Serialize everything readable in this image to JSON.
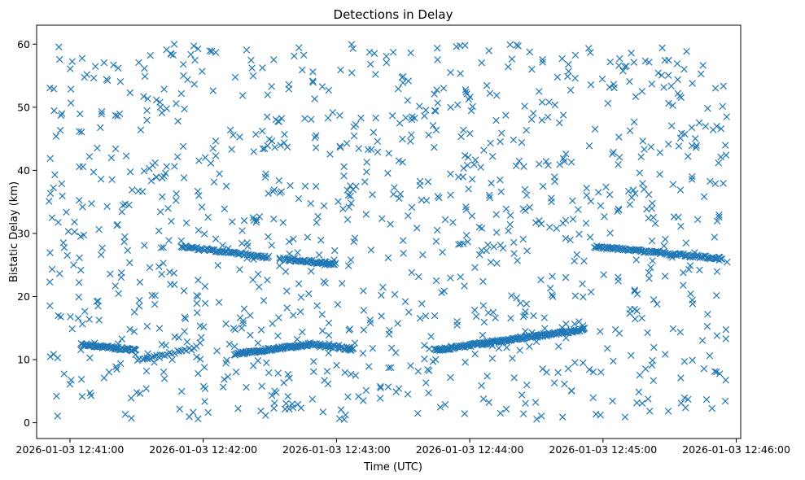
{
  "chart_data": {
    "type": "scatter",
    "title": "Detections in Delay",
    "xlabel": "Time (UTC)",
    "ylabel": "Bistatic Delay (km)",
    "marker": "x",
    "color": "#1f77b4",
    "x_type": "datetime",
    "xlim": [
      "2026-01-03 12:40:45",
      "2026-01-03 12:46:02"
    ],
    "ylim": [
      -2.5,
      63
    ],
    "x_ticks": [
      "2026-01-03 12:41:00",
      "2026-01-03 12:42:00",
      "2026-01-03 12:43:00",
      "2026-01-03 12:44:00",
      "2026-01-03 12:45:00",
      "2026-01-03 12:46:00"
    ],
    "y_ticks": [
      0,
      10,
      20,
      30,
      40,
      50,
      60
    ],
    "grid": false,
    "clutter": {
      "time_range": [
        "2026-01-03 12:40:50",
        "2026-01-03 12:45:56"
      ],
      "delay_range": [
        0.5,
        60
      ],
      "count": 1100
    },
    "tracks": [
      {
        "start": {
          "time": "2026-01-03 12:41:05",
          "delay": 12.4
        },
        "end": {
          "time": "2026-01-03 12:41:30",
          "delay": 11.5
        },
        "count": 60
      },
      {
        "start": {
          "time": "2026-01-03 12:41:30",
          "delay": 9.8
        },
        "end": {
          "time": "2026-01-03 12:41:58",
          "delay": 12.0
        },
        "count": 25
      },
      {
        "start": {
          "time": "2026-01-03 12:42:14",
          "delay": 10.9
        },
        "end": {
          "time": "2026-01-03 12:42:48",
          "delay": 12.4
        },
        "count": 90
      },
      {
        "start": {
          "time": "2026-01-03 12:42:48",
          "delay": 12.6
        },
        "end": {
          "time": "2026-01-03 12:43:08",
          "delay": 11.6
        },
        "count": 40
      },
      {
        "start": {
          "time": "2026-01-03 12:41:50",
          "delay": 27.9
        },
        "end": {
          "time": "2026-01-03 12:42:30",
          "delay": 26.2
        },
        "count": 70
      },
      {
        "start": {
          "time": "2026-01-03 12:42:36",
          "delay": 25.9
        },
        "end": {
          "time": "2026-01-03 12:43:00",
          "delay": 25.2
        },
        "count": 50
      },
      {
        "start": {
          "time": "2026-01-03 12:43:44",
          "delay": 11.5
        },
        "end": {
          "time": "2026-01-03 12:44:52",
          "delay": 14.8
        },
        "count": 170
      },
      {
        "start": {
          "time": "2026-01-03 12:44:56",
          "delay": 27.9
        },
        "end": {
          "time": "2026-01-03 12:45:54",
          "delay": 26.0
        },
        "count": 110
      }
    ]
  }
}
